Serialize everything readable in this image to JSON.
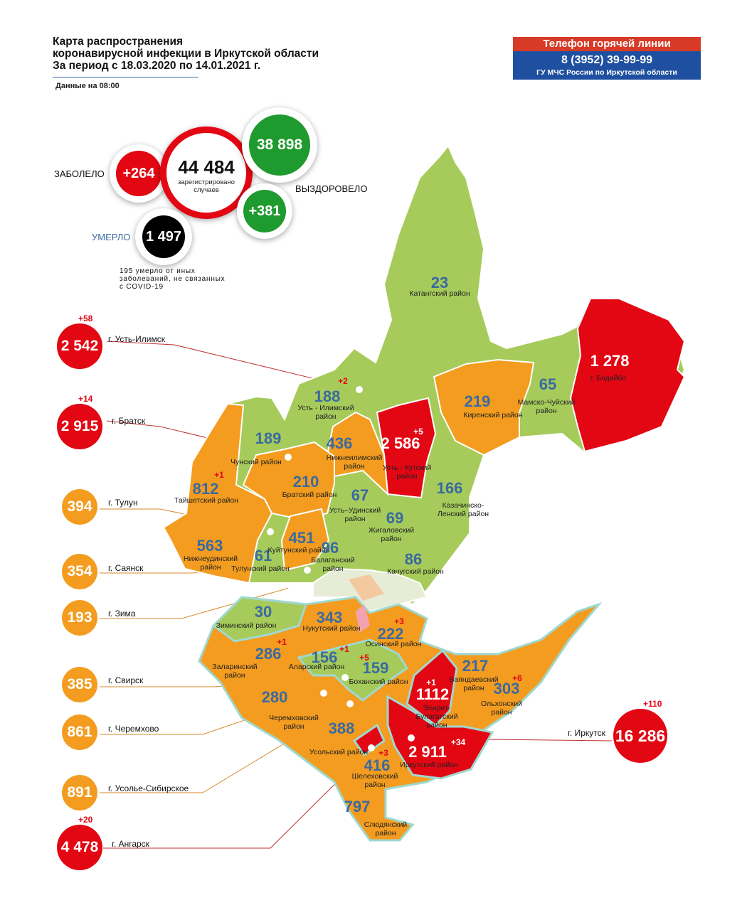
{
  "header": {
    "title_lines": [
      "Карта распространения",
      "коронавирусной инфекции в Иркутской области",
      "За период с 18.03.2020 по 14.01.2021 г."
    ],
    "as_of": "Данные на 08:00"
  },
  "hotline": {
    "title": "Телефон горячей линии",
    "phone": "8 (3952) 39-99-99",
    "org": "ГУ МЧС России по Иркутской области"
  },
  "colors": {
    "green": "#a6cb5b",
    "orange": "#f39c1f",
    "red": "#e30613",
    "number_blue": "#3a6aa0",
    "hotline_blue": "#1f4fa0",
    "hotline_red": "#d73a27"
  },
  "summary": {
    "total": "44 484",
    "total_caption": "зарегистрировано случаев",
    "infected_label": "ЗАБОЛЕЛО",
    "infected_delta": "+264",
    "recovered_label": "ВЫЗДОРОВЕЛО",
    "recovered": "38 898",
    "recovered_delta": "+381",
    "died_label": "УМЕРЛО",
    "died": "1 497",
    "died_note": "195 умерло от иных заболеваний, не связанных с COVID-19"
  },
  "districts": [
    {
      "name": "Катангский район",
      "cases": "23",
      "level": "green"
    },
    {
      "name": "г. Бодайбо",
      "cases": "1 278",
      "level": "red"
    },
    {
      "name": "Мамско-Чуйский район",
      "cases": "65",
      "level": "green"
    },
    {
      "name": "Киренский район",
      "cases": "219",
      "level": "orange"
    },
    {
      "name": "Усть - Кутский район",
      "cases": "2 586",
      "delta": "+5",
      "level": "red"
    },
    {
      "name": "Нижнеилимский район",
      "cases": "436",
      "level": "orange"
    },
    {
      "name": "Усть - Илимский район",
      "cases": "188",
      "delta": "+2",
      "level": "green"
    },
    {
      "name": "Чунский район",
      "cases": "189",
      "level": "green"
    },
    {
      "name": "Братский район",
      "cases": "210",
      "level": "orange"
    },
    {
      "name": "Тайшетский район",
      "cases": "812",
      "delta": "+1",
      "level": "orange"
    },
    {
      "name": "Нижнеудинский район",
      "cases": "563",
      "level": "orange"
    },
    {
      "name": "Тулунский район",
      "cases": "61",
      "level": "green"
    },
    {
      "name": "Куйтунский район",
      "cases": "451",
      "level": "orange"
    },
    {
      "name": "Балаганский район",
      "cases": "96",
      "level": "green"
    },
    {
      "name": "Усть–Удинский район",
      "cases": "67",
      "level": "green"
    },
    {
      "name": "Жигаловский район",
      "cases": "69",
      "level": "green"
    },
    {
      "name": "Казачинско-Ленский район",
      "cases": "166",
      "level": "green"
    },
    {
      "name": "Качугский район",
      "cases": "86",
      "level": "green"
    },
    {
      "name": "Зиминский район",
      "cases": "30",
      "level": "green"
    },
    {
      "name": "Нукутский район",
      "cases": "343",
      "level": "orange"
    },
    {
      "name": "Осинский район",
      "cases": "222",
      "delta": "+3",
      "level": "orange"
    },
    {
      "name": "Заларинский район",
      "cases": "286",
      "delta": "+1",
      "level": "orange"
    },
    {
      "name": "Аларский район",
      "cases": "156",
      "delta": "+1",
      "level": "green"
    },
    {
      "name": "Боханский район",
      "cases": "159",
      "delta": "+5",
      "level": "green"
    },
    {
      "name": "Эхирит-Булагатский район",
      "cases": "1112",
      "delta": "+1",
      "level": "red"
    },
    {
      "name": "Баяндаевский район",
      "cases": "217",
      "level": "orange"
    },
    {
      "name": "Ольхонский район",
      "cases": "303",
      "delta": "+6",
      "level": "orange"
    },
    {
      "name": "Черемховский район",
      "cases": "280",
      "level": "orange"
    },
    {
      "name": "Усольский район",
      "cases": "388",
      "level": "orange"
    },
    {
      "name": "Шелеховский район",
      "cases": "416",
      "delta": "+3",
      "level": "orange"
    },
    {
      "name": "Иркутский район",
      "cases": "2 911",
      "delta": "+34",
      "level": "red"
    },
    {
      "name": "Слюдянский район",
      "cases": "797",
      "level": "orange"
    }
  ],
  "cities": [
    {
      "name": "г. Усть-Илимск",
      "cases": "2 542",
      "delta": "+58",
      "level": "red"
    },
    {
      "name": "г. Братск",
      "cases": "2 915",
      "delta": "+14",
      "level": "red"
    },
    {
      "name": "г. Тулун",
      "cases": "394",
      "level": "orange"
    },
    {
      "name": "г. Саянск",
      "cases": "354",
      "level": "orange"
    },
    {
      "name": "г. Зима",
      "cases": "193",
      "level": "orange"
    },
    {
      "name": "г. Свирск",
      "cases": "385",
      "level": "orange"
    },
    {
      "name": "г. Черемхово",
      "cases": "861",
      "level": "orange"
    },
    {
      "name": "г. Усолье-Сибирское",
      "cases": "891",
      "level": "orange"
    },
    {
      "name": "г. Ангарск",
      "cases": "4 478",
      "delta": "+20",
      "level": "red"
    },
    {
      "name": "г. Иркутск",
      "cases": "16 286",
      "delta": "+110",
      "level": "red"
    }
  ]
}
